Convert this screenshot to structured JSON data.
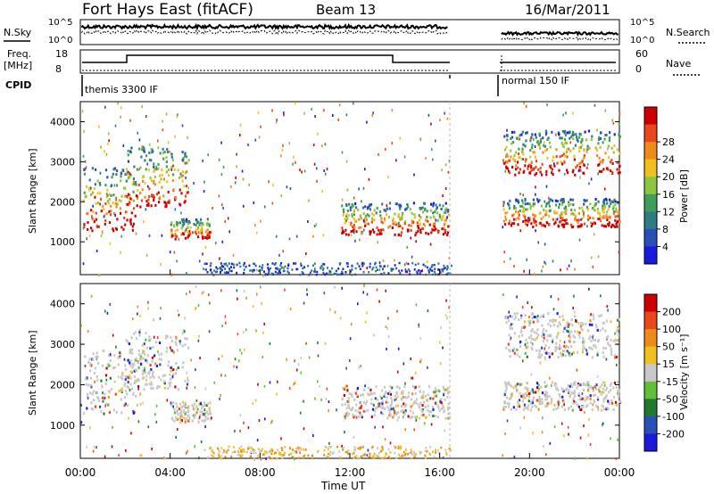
{
  "header": {
    "title": "Fort Hays East (fitACF)",
    "beam": "Beam 13",
    "date": "16/Mar/2011"
  },
  "status_panels": {
    "nsky_label": "N.Sky",
    "nsearch_label": "N.Search",
    "noise_ticks": [
      "10^5",
      "10^0"
    ],
    "freq_label_line1": "Freq.",
    "freq_label_line2": "[MHz]",
    "freq_ticks": [
      "18",
      "8"
    ],
    "nave_label": "Nave",
    "nave_ticks": [
      "60",
      "0"
    ],
    "cpid_label": "CPID",
    "cpid_segments": [
      {
        "label": "themis 3300 IF",
        "start_hour": 0,
        "end_hour": 16.4
      },
      {
        "label": "normal 150 IF",
        "start_hour": 18.7,
        "end_hour": 24
      }
    ]
  },
  "chart_data": [
    {
      "type": "heatmap",
      "panel": "power",
      "ylabel": "Slant Range [km]",
      "xlabel": "",
      "x_range_hours": [
        0,
        24
      ],
      "ylim": [
        180,
        4500
      ],
      "yticks": [
        "1000",
        "2000",
        "3000",
        "4000"
      ],
      "colorbar_label": "Power [dB]",
      "colorbar_ticks": [
        "4",
        "8",
        "12",
        "16",
        "20",
        "24",
        "28"
      ],
      "colorbar_colors": [
        "#1a1adc",
        "#2a4fb8",
        "#2e7d86",
        "#3f9e57",
        "#8cc63f",
        "#f0c020",
        "#f08a1a",
        "#e8481a",
        "#cc0000"
      ],
      "data_gap_hours": [
        16.4,
        18.7
      ],
      "echo_regions": [
        {
          "start_hour": 0.1,
          "end_hour": 2.6,
          "range_from_km": 1300,
          "range_to_km": 2900
        },
        {
          "start_hour": 2.0,
          "end_hour": 4.8,
          "range_from_km": 1900,
          "range_to_km": 3400
        },
        {
          "start_hour": 4.0,
          "end_hour": 5.8,
          "range_from_km": 1100,
          "range_to_km": 1600
        },
        {
          "start_hour": 11.6,
          "end_hour": 16.4,
          "range_from_km": 1200,
          "range_to_km": 2000
        },
        {
          "start_hour": 18.8,
          "end_hour": 24,
          "range_from_km": 1400,
          "range_to_km": 2100
        },
        {
          "start_hour": 18.8,
          "end_hour": 24,
          "range_from_km": 2700,
          "range_to_km": 3800
        }
      ]
    },
    {
      "type": "heatmap",
      "panel": "velocity",
      "ylabel": "Slant Range [km]",
      "xlabel": "Time UT",
      "x_range_hours": [
        0,
        24
      ],
      "xticks": [
        "00:00",
        "04:00",
        "08:00",
        "12:00",
        "16:00",
        "20:00",
        "00:00"
      ],
      "ylim": [
        180,
        4500
      ],
      "yticks": [
        "1000",
        "2000",
        "3000",
        "4000"
      ],
      "colorbar_label": "Velocity [m s⁻¹]",
      "colorbar_ticks": [
        "200",
        "100",
        "50",
        "15",
        "-15",
        "-50",
        "-100",
        "-200"
      ],
      "colorbar_colors": [
        "#1a1adc",
        "#2a4fb8",
        "#1f7a2e",
        "#5fbf3a",
        "#c8c8c8",
        "#f0c020",
        "#f08a1a",
        "#e8481a",
        "#cc0000"
      ],
      "data_gap_hours": [
        16.4,
        18.7
      ]
    }
  ]
}
